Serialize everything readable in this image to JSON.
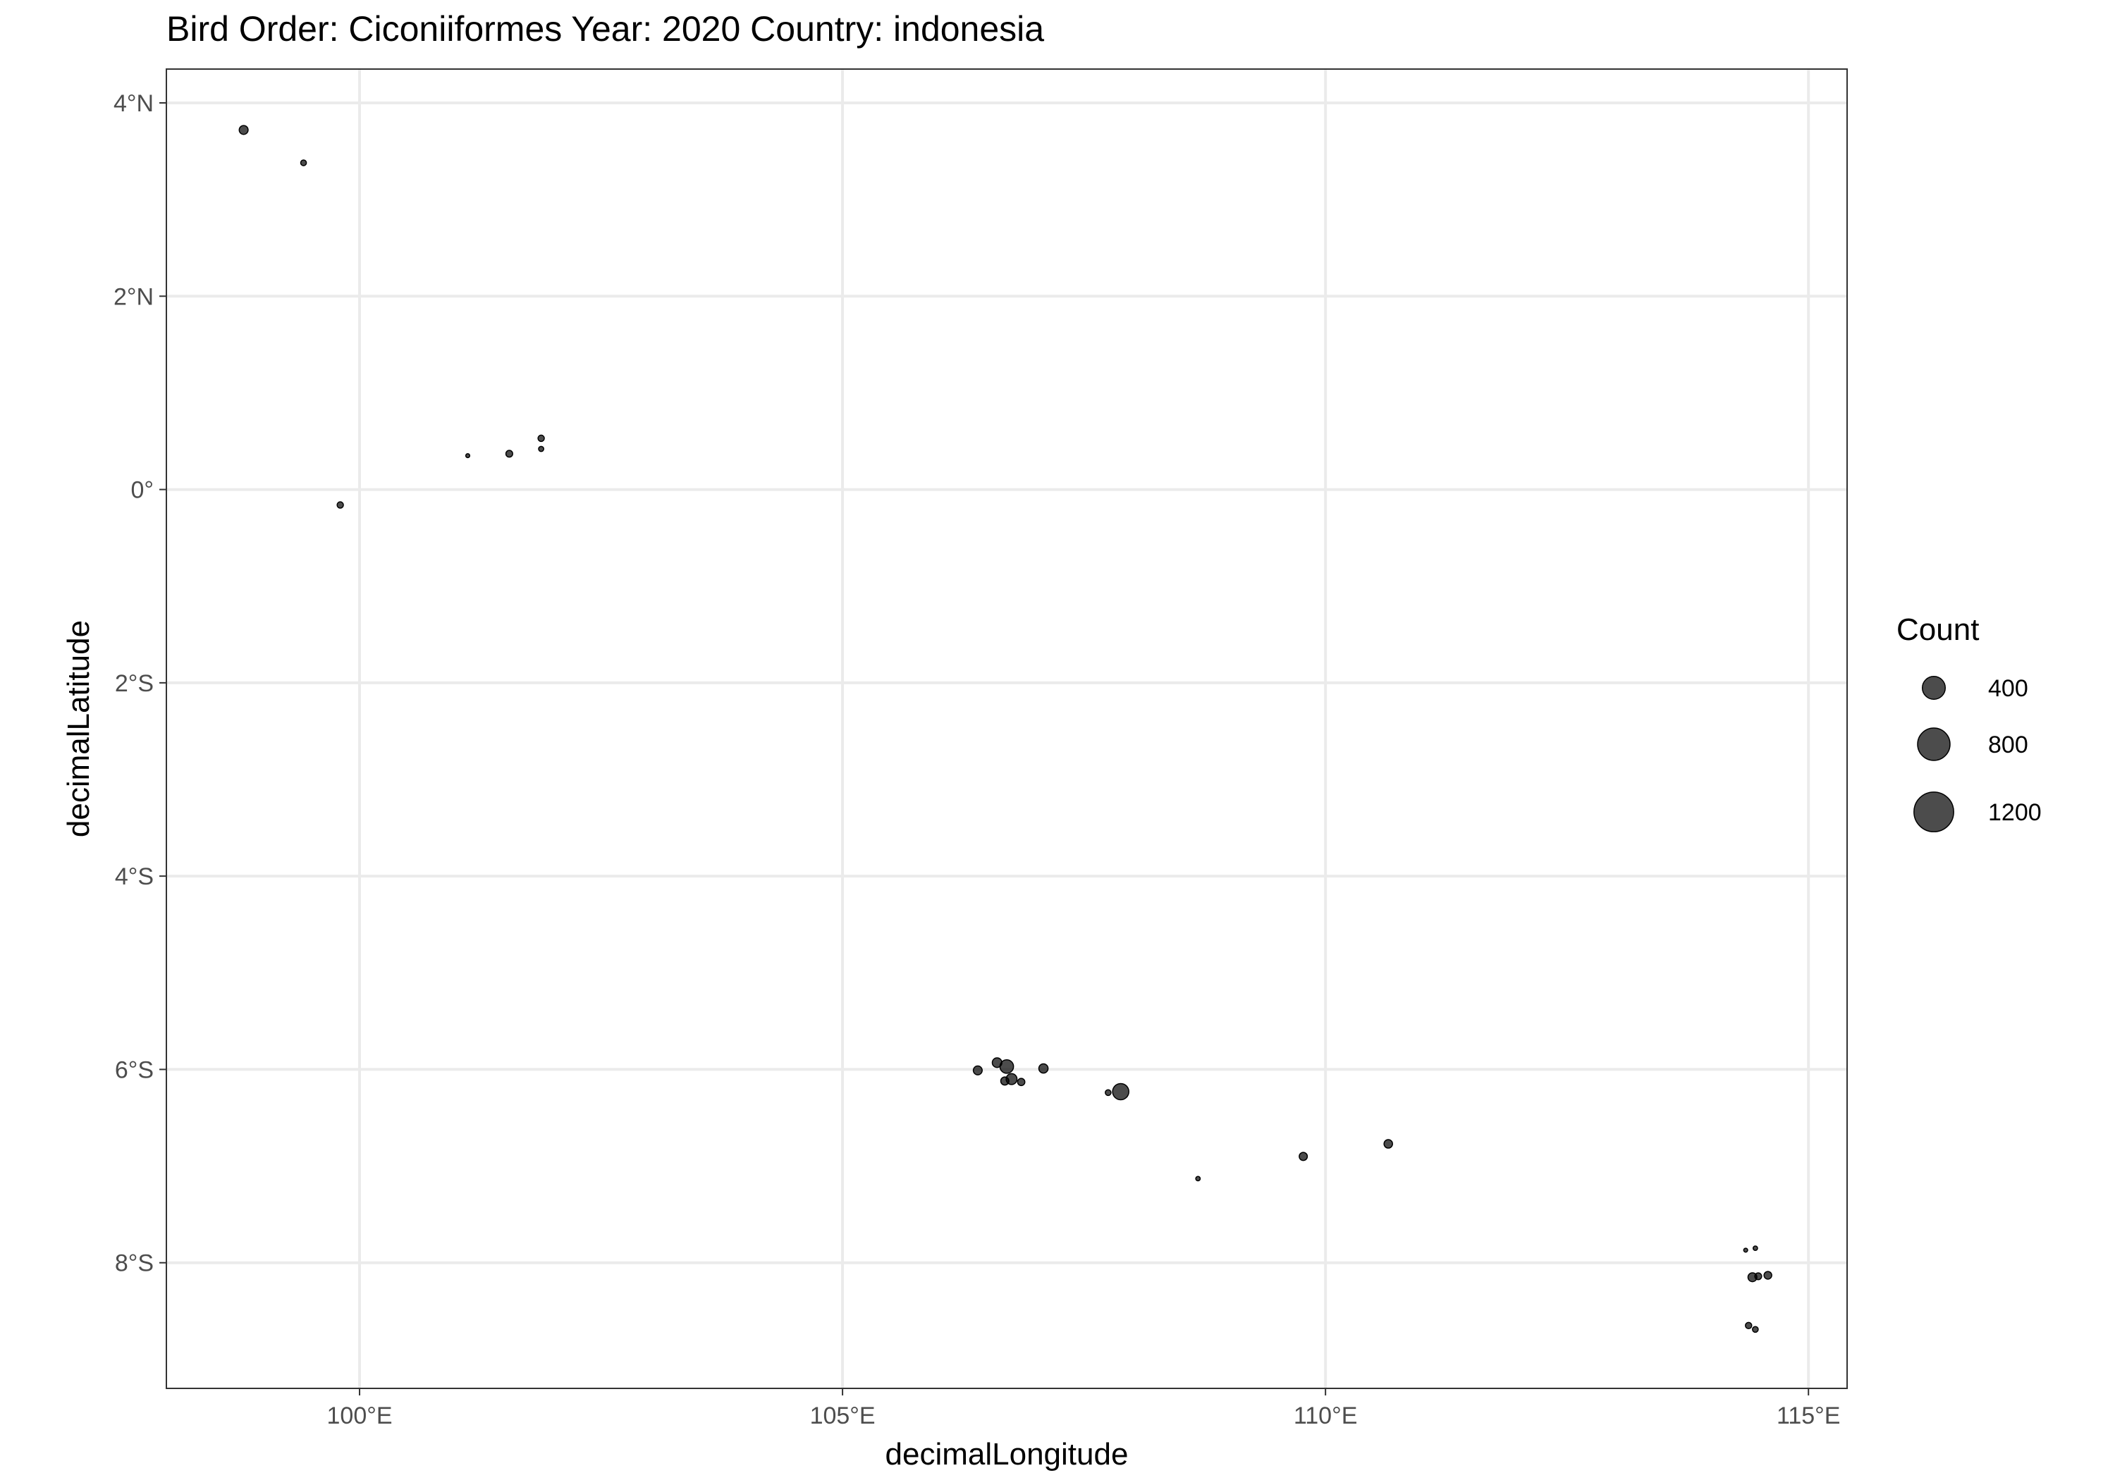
{
  "chart_data": {
    "type": "scatter",
    "title": "Bird Order: Ciconiiformes Year: 2020 Country: indonesia",
    "xlabel": "decimalLongitude",
    "ylabel": "decimalLatitude",
    "xlim": [
      98.0,
      115.4
    ],
    "ylim": [
      -9.3,
      4.35
    ],
    "x_ticks": [
      {
        "value": 100,
        "label": "100°E"
      },
      {
        "value": 105,
        "label": "105°E"
      },
      {
        "value": 110,
        "label": "110°E"
      },
      {
        "value": 115,
        "label": "115°E"
      }
    ],
    "y_ticks": [
      {
        "value": 4,
        "label": "4°N"
      },
      {
        "value": 2,
        "label": "2°N"
      },
      {
        "value": 0,
        "label": "0°"
      },
      {
        "value": -2,
        "label": "2°S"
      },
      {
        "value": -4,
        "label": "4°S"
      },
      {
        "value": -6,
        "label": "6°S"
      },
      {
        "value": -8,
        "label": "8°S"
      }
    ],
    "grid": true,
    "point_color": "#000000",
    "legend": {
      "title": "Count",
      "placement": "right",
      "entries": [
        {
          "value": 400,
          "label": "400"
        },
        {
          "value": 800,
          "label": "800"
        },
        {
          "value": 1200,
          "label": "1200"
        }
      ]
    },
    "points": [
      {
        "lon": 98.8,
        "lat": 3.72,
        "count": 60
      },
      {
        "lon": 99.42,
        "lat": 3.38,
        "count": 25
      },
      {
        "lon": 99.8,
        "lat": -0.16,
        "count": 30
      },
      {
        "lon": 101.12,
        "lat": 0.35,
        "count": 12
      },
      {
        "lon": 101.55,
        "lat": 0.37,
        "count": 35
      },
      {
        "lon": 101.88,
        "lat": 0.53,
        "count": 30
      },
      {
        "lon": 101.88,
        "lat": 0.42,
        "count": 20
      },
      {
        "lon": 106.4,
        "lat": -6.01,
        "count": 60
      },
      {
        "lon": 106.6,
        "lat": -5.93,
        "count": 70
      },
      {
        "lon": 106.7,
        "lat": -5.97,
        "count": 140
      },
      {
        "lon": 106.75,
        "lat": -6.1,
        "count": 90
      },
      {
        "lon": 106.68,
        "lat": -6.12,
        "count": 50
      },
      {
        "lon": 106.85,
        "lat": -6.13,
        "count": 40
      },
      {
        "lon": 107.08,
        "lat": -5.99,
        "count": 65
      },
      {
        "lon": 107.75,
        "lat": -6.24,
        "count": 25
      },
      {
        "lon": 107.88,
        "lat": -6.23,
        "count": 200
      },
      {
        "lon": 108.68,
        "lat": -7.13,
        "count": 15
      },
      {
        "lon": 109.77,
        "lat": -6.9,
        "count": 50
      },
      {
        "lon": 110.65,
        "lat": -6.77,
        "count": 55
      },
      {
        "lon": 114.35,
        "lat": -7.87,
        "count": 12
      },
      {
        "lon": 114.45,
        "lat": -7.85,
        "count": 15
      },
      {
        "lon": 114.42,
        "lat": -8.15,
        "count": 60
      },
      {
        "lon": 114.48,
        "lat": -8.14,
        "count": 35
      },
      {
        "lon": 114.58,
        "lat": -8.13,
        "count": 45
      },
      {
        "lon": 114.38,
        "lat": -8.65,
        "count": 30
      },
      {
        "lon": 114.45,
        "lat": -8.69,
        "count": 25
      }
    ]
  }
}
